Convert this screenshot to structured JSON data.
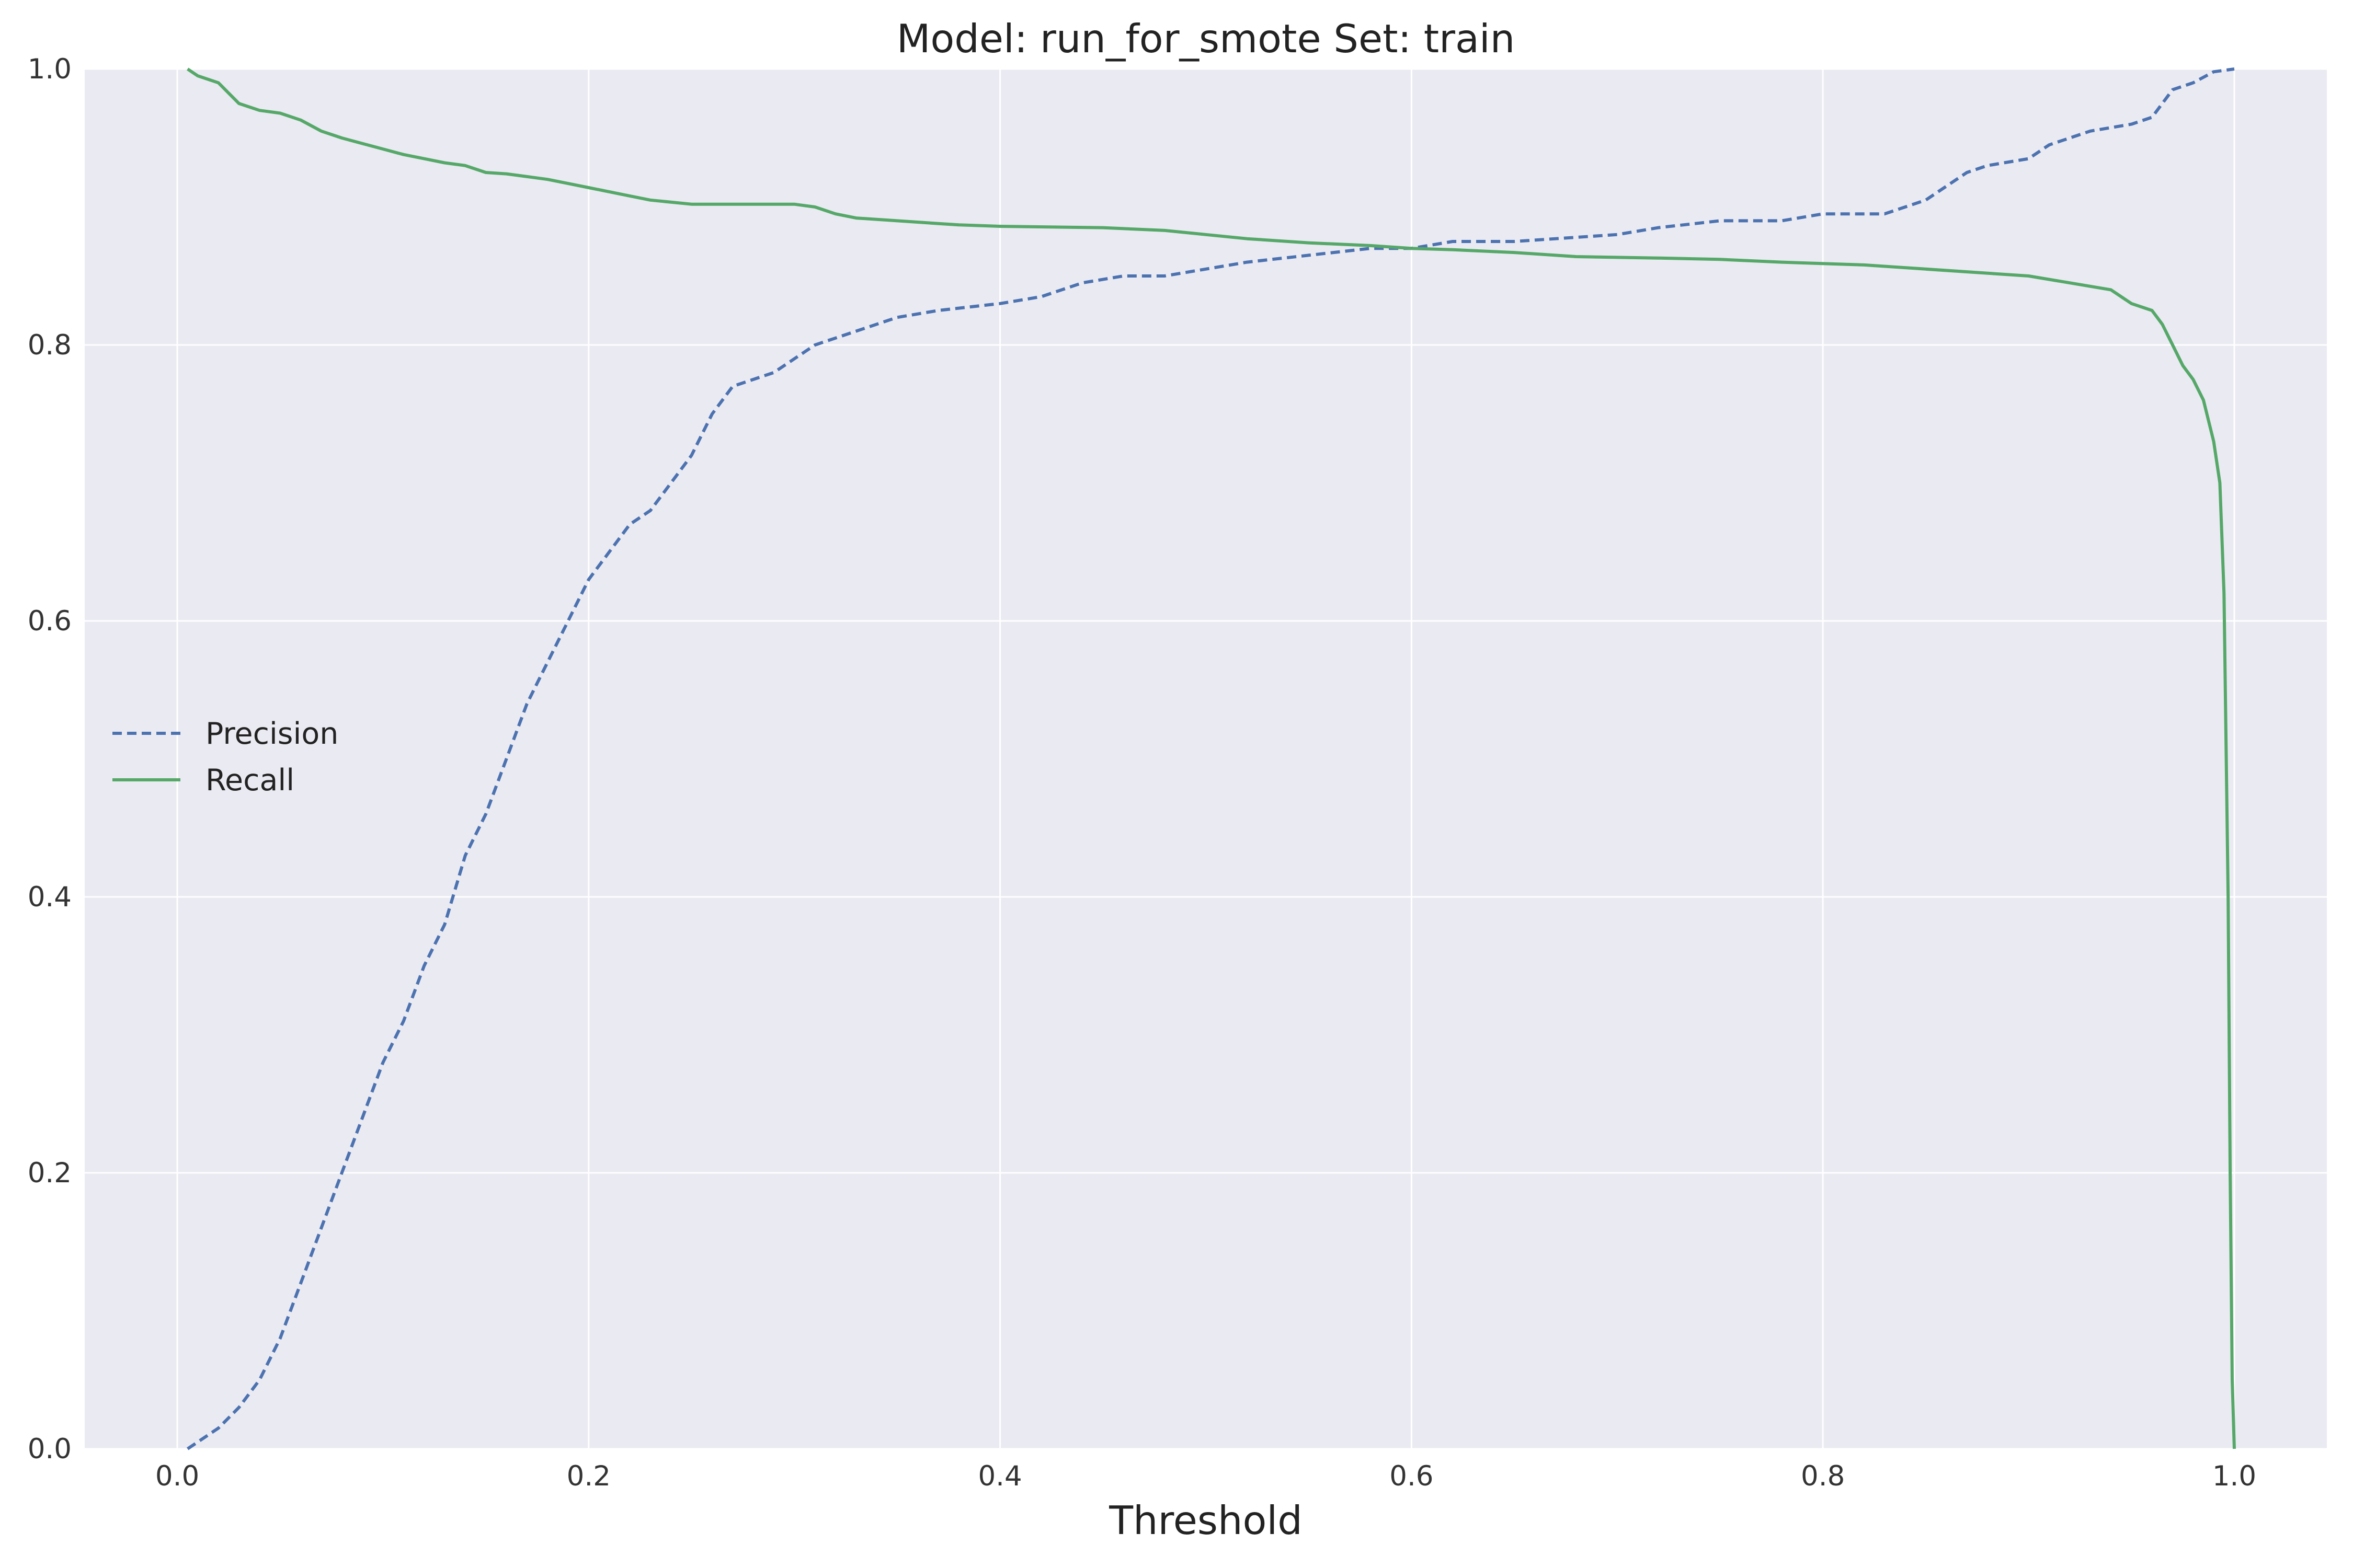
{
  "chart_data": {
    "type": "line",
    "title": "Model: run_for_smote Set: train",
    "xlabel": "Threshold",
    "ylabel": "",
    "xlim": [
      -0.045,
      1.045
    ],
    "ylim": [
      0.0,
      1.0
    ],
    "xticks": [
      "0.0",
      "0.2",
      "0.4",
      "0.6",
      "0.8",
      "1.0"
    ],
    "yticks": [
      "0.0",
      "0.2",
      "0.4",
      "0.6",
      "0.8",
      "1.0"
    ],
    "grid": true,
    "legend_position": "center-left",
    "series": [
      {
        "name": "Precision",
        "style": "dashed",
        "color": "#4c72b0",
        "x": [
          0.005,
          0.02,
          0.03,
          0.04,
          0.05,
          0.06,
          0.07,
          0.08,
          0.09,
          0.1,
          0.11,
          0.12,
          0.13,
          0.14,
          0.15,
          0.16,
          0.17,
          0.18,
          0.19,
          0.2,
          0.21,
          0.22,
          0.23,
          0.24,
          0.25,
          0.26,
          0.27,
          0.28,
          0.29,
          0.3,
          0.31,
          0.32,
          0.33,
          0.35,
          0.37,
          0.4,
          0.42,
          0.44,
          0.46,
          0.48,
          0.5,
          0.52,
          0.55,
          0.58,
          0.6,
          0.62,
          0.65,
          0.7,
          0.72,
          0.75,
          0.78,
          0.8,
          0.83,
          0.85,
          0.86,
          0.87,
          0.88,
          0.9,
          0.91,
          0.93,
          0.95,
          0.96,
          0.97,
          0.98,
          0.99,
          1.0
        ],
        "y": [
          0.0,
          0.015,
          0.03,
          0.05,
          0.08,
          0.12,
          0.16,
          0.2,
          0.24,
          0.28,
          0.31,
          0.35,
          0.38,
          0.43,
          0.46,
          0.5,
          0.54,
          0.57,
          0.6,
          0.63,
          0.65,
          0.67,
          0.68,
          0.7,
          0.72,
          0.75,
          0.77,
          0.775,
          0.78,
          0.79,
          0.8,
          0.805,
          0.81,
          0.82,
          0.825,
          0.83,
          0.835,
          0.845,
          0.85,
          0.85,
          0.855,
          0.86,
          0.865,
          0.87,
          0.87,
          0.875,
          0.875,
          0.88,
          0.885,
          0.89,
          0.89,
          0.895,
          0.895,
          0.905,
          0.915,
          0.925,
          0.93,
          0.935,
          0.945,
          0.955,
          0.96,
          0.965,
          0.985,
          0.99,
          0.998,
          1.0
        ]
      },
      {
        "name": "Recall",
        "style": "solid",
        "color": "#55a868",
        "x": [
          0.005,
          0.01,
          0.02,
          0.03,
          0.04,
          0.05,
          0.06,
          0.07,
          0.08,
          0.09,
          0.1,
          0.11,
          0.12,
          0.13,
          0.14,
          0.15,
          0.16,
          0.17,
          0.18,
          0.19,
          0.2,
          0.22,
          0.23,
          0.25,
          0.3,
          0.31,
          0.32,
          0.33,
          0.35,
          0.37,
          0.38,
          0.4,
          0.45,
          0.48,
          0.5,
          0.52,
          0.55,
          0.58,
          0.6,
          0.62,
          0.65,
          0.68,
          0.72,
          0.75,
          0.78,
          0.82,
          0.85,
          0.9,
          0.92,
          0.94,
          0.95,
          0.96,
          0.965,
          0.97,
          0.975,
          0.98,
          0.985,
          0.99,
          0.993,
          0.995,
          0.997,
          0.998,
          0.999,
          1.0
        ],
        "y": [
          1.0,
          0.995,
          0.99,
          0.975,
          0.97,
          0.968,
          0.963,
          0.955,
          0.95,
          0.946,
          0.942,
          0.938,
          0.935,
          0.932,
          0.93,
          0.925,
          0.924,
          0.922,
          0.92,
          0.917,
          0.914,
          0.908,
          0.905,
          0.902,
          0.902,
          0.9,
          0.895,
          0.892,
          0.89,
          0.888,
          0.887,
          0.886,
          0.885,
          0.883,
          0.88,
          0.877,
          0.874,
          0.872,
          0.87,
          0.869,
          0.867,
          0.864,
          0.863,
          0.862,
          0.86,
          0.858,
          0.855,
          0.85,
          0.845,
          0.84,
          0.83,
          0.825,
          0.815,
          0.8,
          0.785,
          0.775,
          0.76,
          0.73,
          0.7,
          0.62,
          0.4,
          0.2,
          0.05,
          0.0
        ]
      }
    ]
  },
  "colors": {
    "plot_background": "#eaeaf2",
    "grid": "#ffffff",
    "precision": "#4c72b0",
    "recall": "#55a868"
  }
}
